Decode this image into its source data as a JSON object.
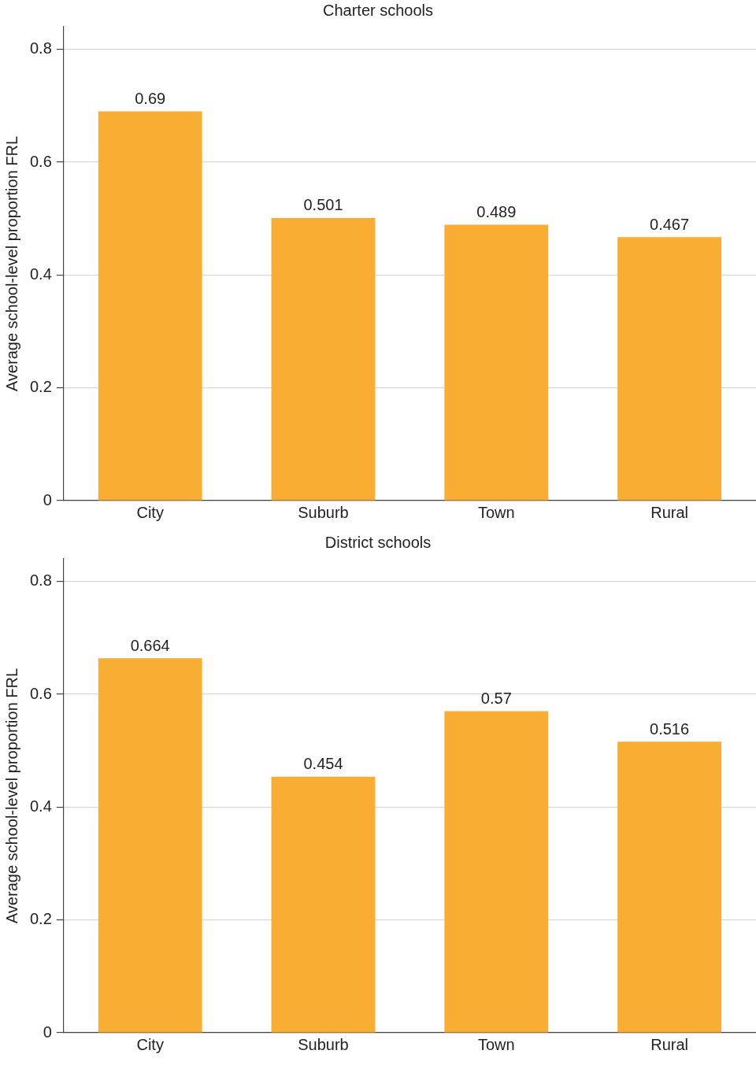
{
  "chart_data": [
    {
      "type": "bar",
      "title": "Charter schools",
      "ylabel": "Average school-level proportion FRL",
      "categories": [
        "City",
        "Suburb",
        "Town",
        "Rural"
      ],
      "values": [
        0.69,
        0.501,
        0.489,
        0.467
      ],
      "color": "#f9ae33",
      "ylim": [
        0,
        0.84
      ],
      "yticks": [
        0,
        0.2,
        0.4,
        0.6,
        0.8
      ],
      "grid": "y",
      "data_labels": true,
      "legend": false
    },
    {
      "type": "bar",
      "title": "District schools",
      "ylabel": "Average school-level proportion FRL",
      "categories": [
        "City",
        "Suburb",
        "Town",
        "Rural"
      ],
      "values": [
        0.664,
        0.454,
        0.57,
        0.516
      ],
      "color": "#f9ae33",
      "ylim": [
        0,
        0.84
      ],
      "yticks": [
        0,
        0.2,
        0.4,
        0.6,
        0.8
      ],
      "grid": "y",
      "data_labels": true,
      "legend": false
    }
  ]
}
